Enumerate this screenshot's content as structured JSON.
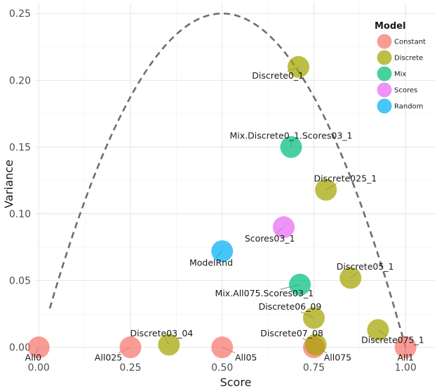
{
  "chart_data": {
    "type": "scatter",
    "xlabel": "Score",
    "ylabel": "Variance",
    "xlim": [
      -0.01,
      1.08
    ],
    "ylim": [
      -0.007,
      0.258
    ],
    "x_ticks": [
      0.0,
      0.25,
      0.5,
      0.75,
      1.0
    ],
    "x_tick_labels": [
      "0.00",
      "0.25",
      "0.50",
      "0.75",
      "1.00"
    ],
    "y_ticks": [
      0.0,
      0.05,
      0.1,
      0.15,
      0.2,
      0.25
    ],
    "y_tick_labels": [
      "0.00",
      "0.05",
      "0.10",
      "0.15",
      "0.20",
      "0.25"
    ],
    "grid": true,
    "reference_curve": {
      "formula": "x*(1-x)",
      "style": "dashed",
      "x_range": [
        0.03,
        1.0
      ]
    },
    "legend": {
      "title": "Model",
      "position": "top-right",
      "entries": [
        {
          "name": "Constant",
          "color": "#F8766D"
        },
        {
          "name": "Discrete",
          "color": "#A3A500"
        },
        {
          "name": "Mix",
          "color": "#00BF7D"
        },
        {
          "name": "Scores",
          "color": "#E76BF3"
        },
        {
          "name": "Random",
          "color": "#00B0F6"
        }
      ]
    },
    "points": [
      {
        "label": "All0",
        "model": "Constant",
        "x": 0.0,
        "y": 0.0,
        "label_x": -0.015,
        "label_y": -0.0075
      },
      {
        "label": "All025",
        "model": "Constant",
        "x": 0.25,
        "y": 0.0,
        "label_x": 0.19,
        "label_y": -0.0075
      },
      {
        "label": "All05",
        "model": "Constant",
        "x": 0.5,
        "y": 0.0,
        "label_x": 0.565,
        "label_y": -0.0075
      },
      {
        "label": "All075",
        "model": "Constant",
        "x": 0.75,
        "y": 0.0,
        "label_x": 0.815,
        "label_y": -0.0075
      },
      {
        "label": "All1",
        "model": "Constant",
        "x": 1.0,
        "y": 0.0,
        "label_x": 1.0,
        "label_y": -0.0075
      },
      {
        "label": "Discrete0_1",
        "model": "Discrete",
        "x": 0.708,
        "y": 0.21,
        "label_x": 0.652,
        "label_y": 0.2035
      },
      {
        "label": "Discrete025_1",
        "model": "Discrete",
        "x": 0.783,
        "y": 0.118,
        "label_x": 0.836,
        "label_y": 0.1265
      },
      {
        "label": "Discrete05_1",
        "model": "Discrete",
        "x": 0.85,
        "y": 0.052,
        "label_x": 0.89,
        "label_y": 0.0605
      },
      {
        "label": "Discrete075_1",
        "model": "Discrete",
        "x": 0.925,
        "y": 0.013,
        "label_x": 0.965,
        "label_y": 0.0055
      },
      {
        "label": "Discrete03_04",
        "model": "Discrete",
        "x": 0.355,
        "y": 0.002,
        "label_x": 0.335,
        "label_y": 0.0107
      },
      {
        "label": "Discrete06_09",
        "model": "Discrete",
        "x": 0.75,
        "y": 0.022,
        "label_x": 0.685,
        "label_y": 0.0305
      },
      {
        "label": "Discrete07_08",
        "model": "Discrete",
        "x": 0.755,
        "y": 0.002,
        "label_x": 0.69,
        "label_y": 0.0107
      },
      {
        "label": "Mix.Discrete0_1.Scores03_1",
        "model": "Mix",
        "x": 0.688,
        "y": 0.15,
        "label_x": 0.688,
        "label_y": 0.1585
      },
      {
        "label": "Mix.All075.Scores03_1",
        "model": "Mix",
        "x": 0.712,
        "y": 0.047,
        "label_x": 0.615,
        "label_y": 0.0405
      },
      {
        "label": "Scores03_1",
        "model": "Scores",
        "x": 0.668,
        "y": 0.09,
        "label_x": 0.63,
        "label_y": 0.0815
      },
      {
        "label": "ModelRnd",
        "model": "Random",
        "x": 0.5,
        "y": 0.072,
        "label_x": 0.47,
        "label_y": 0.0635
      }
    ]
  }
}
